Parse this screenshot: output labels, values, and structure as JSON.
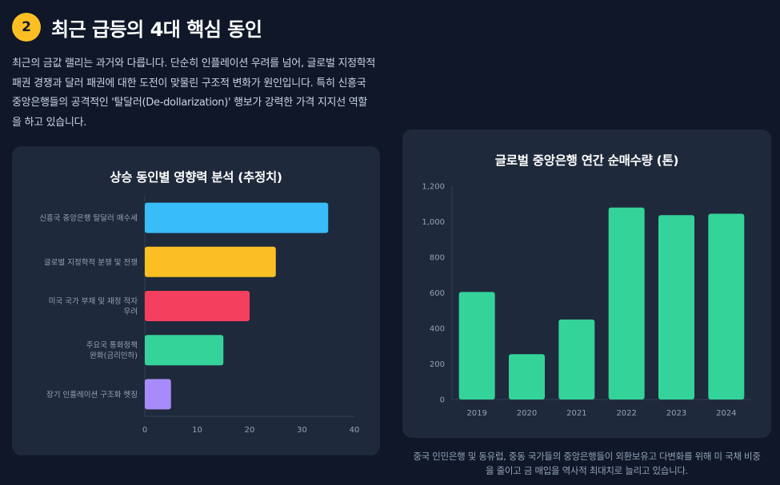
{
  "header": {
    "number": "2",
    "title": "최근 급등의 4대 핵심 동인"
  },
  "intro": "최근의 금값 랠리는 과거와 다릅니다. 단순히 인플레이션 우려를 넘어, 글로벌 지정학적 패권 경쟁과 달러 패권에 대한 도전이 맞물린 구조적 변화가 원인입니다. 특히 신흥국 중앙은행들의 공격적인 '탈달러(De-dollarization)' 행보가 강력한 가격 지지선 역할을 하고 있습니다.",
  "colors": {
    "background": "#0f1729",
    "card": "#1e293b",
    "accent": "#fbbf24",
    "green": "#34d399"
  },
  "chart_data": [
    {
      "type": "bar",
      "orientation": "horizontal",
      "title": "상승 동인별 영향력 분석 (추정치)",
      "categories": [
        [
          "신흥국 중앙은행 탈달러 매수세"
        ],
        [
          "글로벌 지정학적 분쟁 및 전쟁"
        ],
        [
          "미국 국가 부채 및 재정 적자",
          "우려"
        ],
        [
          "주요국 통화정책",
          "완화(금리인하)"
        ],
        [
          "장기 인플레이션 구조화 헷징"
        ]
      ],
      "values": [
        35,
        25,
        20,
        15,
        5
      ],
      "colors": [
        "#38bdf8",
        "#fbbf24",
        "#f43f5e",
        "#34d399",
        "#a78bfa"
      ],
      "xlim": [
        0,
        40
      ],
      "xticks": [
        "0",
        "10",
        "20",
        "30",
        "40"
      ],
      "grid": false
    },
    {
      "type": "bar",
      "title": "글로벌 중앙은행 연간 순매수량 (톤)",
      "categories": [
        "2019",
        "2020",
        "2021",
        "2022",
        "2023",
        "2024"
      ],
      "values": [
        605,
        255,
        450,
        1080,
        1037,
        1045
      ],
      "color": "#34d399",
      "ylim": [
        0,
        1200
      ],
      "yticks": [
        "0",
        "200",
        "400",
        "600",
        "800",
        "1,000",
        "1,200"
      ],
      "grid": false
    }
  ],
  "caption": "중국 인민은행 및 동유럽, 중동 국가들의 중앙은행들이 외환보유고 다변화를 위해 미 국채 비중을 줄이고 금 매입을 역사적 최대치로 늘리고 있습니다."
}
